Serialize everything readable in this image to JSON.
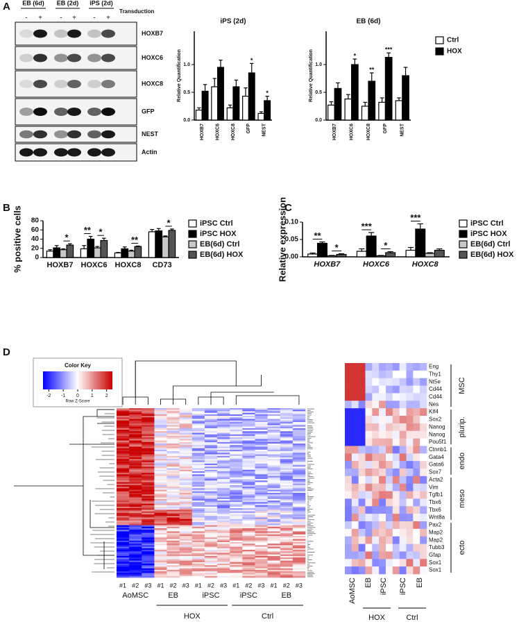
{
  "panels": [
    "A",
    "B",
    "C",
    "D"
  ],
  "blot": {
    "groups": [
      {
        "label": "EB (6d)",
        "lanes": [
          "-",
          "+"
        ]
      },
      {
        "label": "EB (2d)",
        "lanes": [
          "-",
          "+"
        ]
      },
      {
        "label": "iPS (2d)",
        "lanes": [
          "-",
          "+"
        ]
      }
    ],
    "treatment": "Transduction",
    "proteins": [
      "HOXB7",
      "HOXC6",
      "HOXC8",
      "GFP",
      "NEST",
      "Actin"
    ]
  },
  "chart_data": [
    {
      "type": "bar",
      "title": "iPS (2d)",
      "y_label": "Relative Quantification",
      "categories": [
        "HOXB7",
        "HOXC6",
        "HOXC8",
        "GFP",
        "NEST"
      ],
      "series": [
        {
          "name": "Ctrl",
          "color": "#ffffff",
          "values": [
            0.18,
            0.6,
            0.22,
            0.43,
            0.12
          ],
          "errors": [
            0.04,
            0.15,
            0.05,
            0.15,
            0.03
          ]
        },
        {
          "name": "HOX",
          "color": "#000000",
          "values": [
            0.52,
            0.95,
            0.6,
            0.85,
            0.35
          ],
          "errors": [
            0.12,
            0.13,
            0.12,
            0.17,
            0.08
          ]
        }
      ],
      "ylim": [
        0,
        1.6
      ],
      "yticks": [
        {
          "value": 0,
          "label": "0.0"
        },
        0.5,
        {
          "value": 1,
          "label": "1.0"
        }
      ],
      "annotations": [
        {
          "label": "*",
          "category": "GFP",
          "series": [
            "HOX"
          ]
        },
        {
          "label": "*",
          "category": "NEST",
          "series": [
            "HOX"
          ]
        }
      ],
      "legend": false
    },
    {
      "type": "bar",
      "title": "EB (6d)",
      "y_label": "Relative Quantification",
      "categories": [
        "HOXB7",
        "HOXC6",
        "HOXC8",
        "GFP",
        "NEST"
      ],
      "series": [
        {
          "name": "Ctrl",
          "color": "#ffffff",
          "values": [
            0.27,
            0.38,
            0.25,
            0.32,
            0.35
          ],
          "errors": [
            0.06,
            0.08,
            0.07,
            0.08,
            0.05
          ]
        },
        {
          "name": "HOX",
          "color": "#000000",
          "values": [
            0.57,
            1.0,
            0.7,
            1.13,
            0.8
          ],
          "errors": [
            0.1,
            0.1,
            0.15,
            0.08,
            0.15
          ]
        }
      ],
      "ylim": [
        0,
        1.6
      ],
      "yticks": [
        {
          "value": 0,
          "label": "0.0"
        },
        0.5,
        {
          "value": 1,
          "label": "1.0"
        }
      ],
      "annotations": [
        {
          "label": "*",
          "category": "HOXC6",
          "series": [
            "HOX"
          ]
        },
        {
          "label": "**",
          "category": "HOXC8",
          "series": [
            "HOX"
          ]
        },
        {
          "label": "***",
          "category": "GFP",
          "series": [
            "HOX"
          ]
        }
      ],
      "legend": true
    },
    {
      "type": "bar",
      "y_label": "% positive cells",
      "categories": [
        "HOXB7",
        "HOXC6",
        "HOXC8",
        "CD73"
      ],
      "series": [
        {
          "name": "iPSC Ctrl",
          "color": "#ffffff",
          "values": [
            14,
            19,
            10,
            56
          ],
          "errors": [
            3,
            7,
            1,
            5
          ]
        },
        {
          "name": "iPSC HOX",
          "color": "#000000",
          "values": [
            21,
            40,
            19,
            58
          ],
          "errors": [
            5,
            6,
            4,
            5
          ]
        },
        {
          "name": "EB(6d) Ctrl",
          "color": "#c8c8c8",
          "values": [
            17,
            21,
            14,
            45
          ],
          "errors": [
            2,
            3,
            2,
            2
          ]
        },
        {
          "name": "EB(6d) HOX",
          "color": "#555555",
          "values": [
            27,
            37,
            24,
            59
          ],
          "errors": [
            3,
            5,
            1,
            3
          ]
        }
      ],
      "ylim": [
        0,
        80
      ],
      "yticks": [
        0,
        20,
        40,
        60,
        80
      ],
      "annotations": [
        {
          "label": "*",
          "category": "HOXB7",
          "series": [
            "EB(6d) Ctrl",
            "EB(6d) HOX"
          ]
        },
        {
          "label": "**",
          "category": "HOXC6",
          "series": [
            "iPSC Ctrl",
            "iPSC HOX"
          ]
        },
        {
          "label": "*",
          "category": "HOXC6",
          "series": [
            "EB(6d) Ctrl",
            "EB(6d) HOX"
          ]
        },
        {
          "label": "**",
          "category": "HOXC8",
          "series": [
            "EB(6d) Ctrl",
            "EB(6d) HOX"
          ]
        },
        {
          "label": "*",
          "category": "CD73",
          "series": [
            "EB(6d) Ctrl",
            "EB(6d) HOX"
          ]
        }
      ],
      "legend": true
    },
    {
      "type": "bar",
      "y_label": "Relative expression",
      "categories": [
        "HOXB7",
        "HOXC6",
        "HOXC8"
      ],
      "series": [
        {
          "name": "iPSC Ctrl",
          "color": "#ffffff",
          "values": [
            0.008,
            0.016,
            0.019
          ],
          "errors": [
            0.003,
            0.007,
            0.008
          ]
        },
        {
          "name": "iPSC HOX",
          "color": "#000000",
          "values": [
            0.039,
            0.06,
            0.08
          ],
          "errors": [
            0.004,
            0.01,
            0.015
          ]
        },
        {
          "name": "EB(6d) Ctrl",
          "color": "#c8c8c8",
          "values": [
            0.003,
            0.003,
            0.01
          ],
          "errors": [
            0.001,
            0.001,
            0.002
          ]
        },
        {
          "name": "EB(6d) HOX",
          "color": "#555555",
          "values": [
            0.007,
            0.012,
            0.019
          ],
          "errors": [
            0.002,
            0.003,
            0.004
          ]
        }
      ],
      "ylim": [
        0,
        0.1
      ],
      "yticks": [
        {
          "value": 0,
          "label": "0.00"
        },
        {
          "value": 0.05,
          "label": "0.05"
        },
        {
          "value": 0.1,
          "label": "0.10"
        }
      ],
      "annotations": [
        {
          "label": "**",
          "category": "HOXB7",
          "series": [
            "iPSC Ctrl",
            "iPSC HOX"
          ]
        },
        {
          "label": "*",
          "category": "HOXB7",
          "series": [
            "EB(6d) Ctrl",
            "EB(6d) HOX"
          ]
        },
        {
          "label": "***",
          "category": "HOXC6",
          "series": [
            "iPSC Ctrl",
            "iPSC HOX"
          ]
        },
        {
          "label": "*",
          "category": "HOXC6",
          "series": [
            "EB(6d) Ctrl",
            "EB(6d) HOX"
          ]
        },
        {
          "label": "***",
          "category": "HOXC8",
          "series": [
            "iPSC Ctrl",
            "iPSC HOX"
          ]
        }
      ],
      "legend": true
    }
  ],
  "heatmap": {
    "color_key": {
      "title": "Color Key",
      "label": "Row Z-Score",
      "lim": [
        -2.4,
        2.4
      ],
      "ticks": [
        -2,
        -1,
        0,
        1,
        2
      ]
    },
    "groups": [
      {
        "label": "AoMSC",
        "samples": [
          "#1",
          "#2",
          "#3"
        ]
      },
      {
        "label": "EB",
        "samples": [
          "#1",
          "#2",
          "#3"
        ]
      },
      {
        "label": "iPSC",
        "samples": [
          "#1",
          "#2",
          "#3"
        ]
      },
      {
        "label": "iPSC",
        "samples": [
          "#1",
          "#2",
          "#3"
        ]
      },
      {
        "label": "EB",
        "samples": [
          "#1",
          "#2",
          "#3"
        ]
      }
    ],
    "conditions": [
      "HOX",
      "Ctrl"
    ]
  },
  "heatmap_small": {
    "gene_groups": [
      {
        "label": "MSC",
        "genes": [
          "Eng",
          "Thy1",
          "Nt5e",
          "Cd44",
          "Cd44",
          "Nes"
        ]
      },
      {
        "label": "plurip.",
        "genes": [
          "Klf4",
          "Sox2",
          "Nanog",
          "Nanog",
          "Pou5f1"
        ]
      },
      {
        "label": "endo",
        "genes": [
          "Ctnnb1",
          "Gata4",
          "Gata6",
          "Sox7"
        ]
      },
      {
        "label": "meso",
        "genes": [
          "Acta2",
          "Vim",
          "Tgfb1",
          "Tbx6",
          "Tbx6",
          "Wnt8a"
        ]
      },
      {
        "label": "ecto",
        "genes": [
          "Pax2",
          "Map2",
          "Map2",
          "Tubb3",
          "Gfap",
          "Sox1",
          "Sox1"
        ]
      }
    ],
    "groups": [
      "AoMSC",
      "EB",
      "iPSC",
      "iPSC",
      "EB"
    ],
    "conditions": [
      "HOX",
      "Ctrl"
    ]
  }
}
